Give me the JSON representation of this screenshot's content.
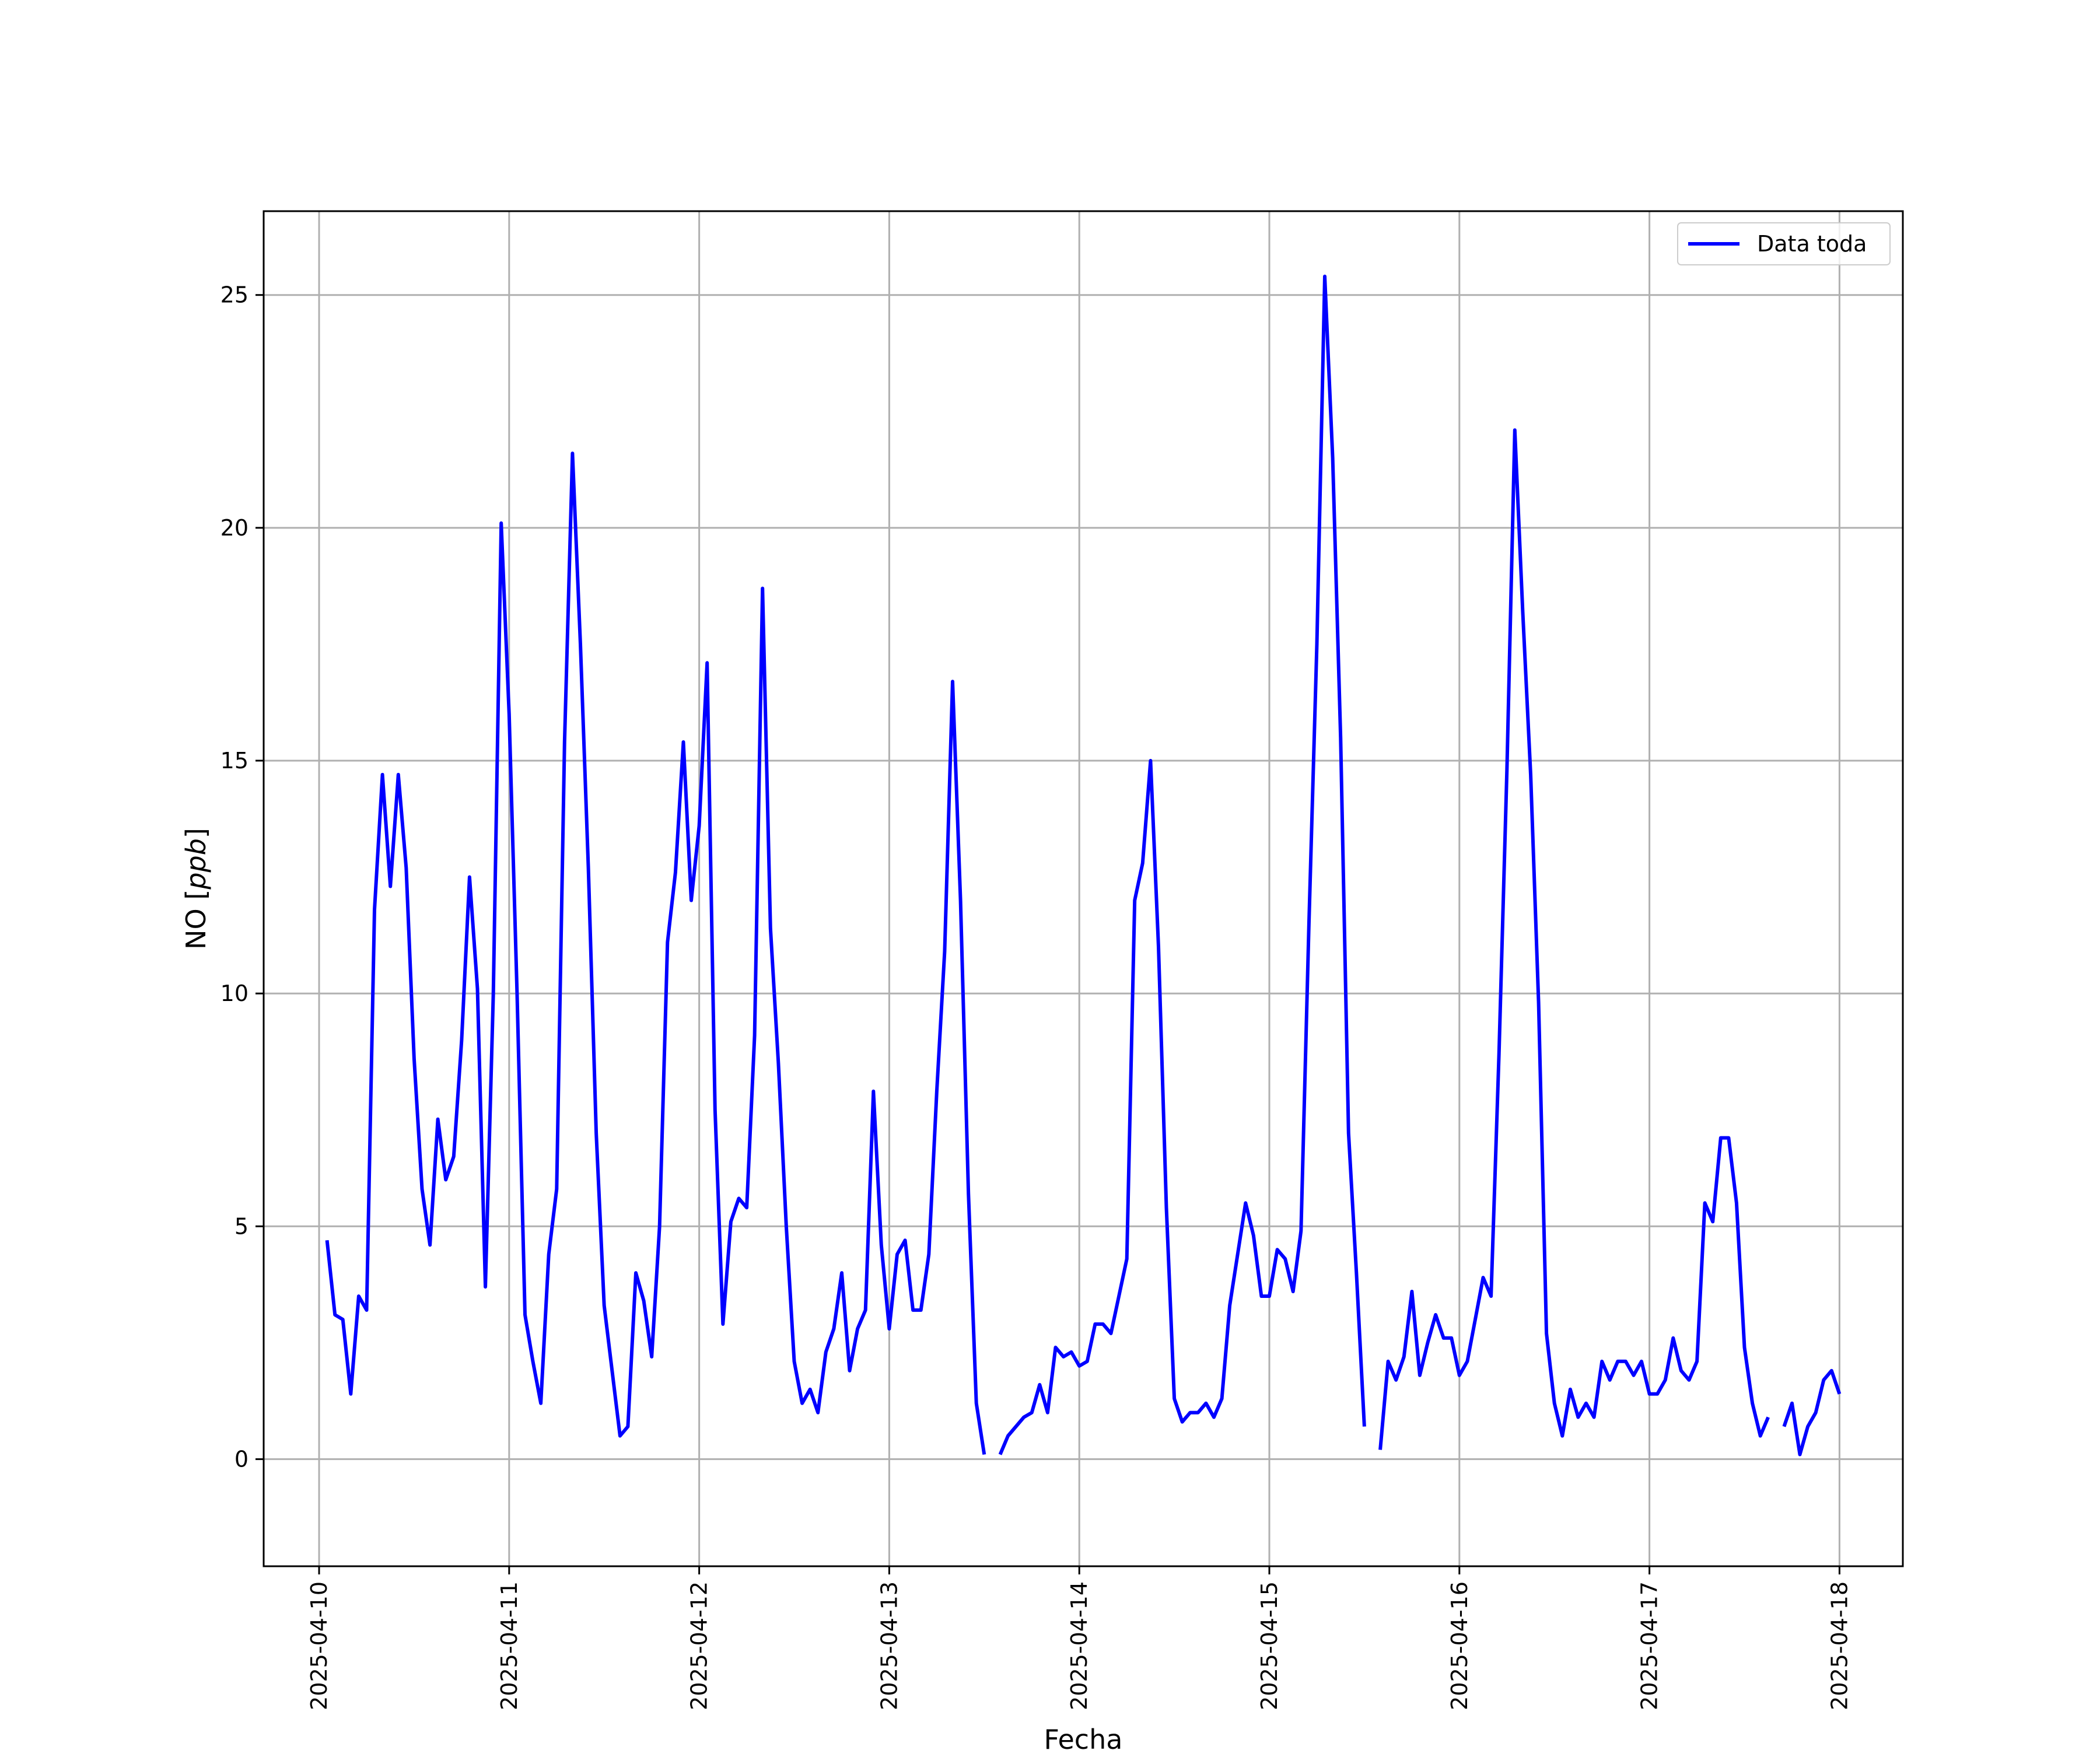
{
  "chart_data": {
    "type": "line",
    "xlabel": "Fecha",
    "ylabel_main": "NO ",
    "ylabel_italic": "ppb",
    "ylabel_open": "[",
    "ylabel_close": "]",
    "xlim": [
      "2025-04-09T17:00",
      "2025-04-18T08:00"
    ],
    "ylim": [
      -2.3,
      26.8
    ],
    "grid": true,
    "legend_position": "top-right",
    "x_ticks": [
      "2025-04-10",
      "2025-04-11",
      "2025-04-12",
      "2025-04-13",
      "2025-04-14",
      "2025-04-15",
      "2025-04-16",
      "2025-04-17",
      "2025-04-18"
    ],
    "y_ticks": [
      0,
      5,
      10,
      15,
      20,
      25
    ],
    "series": [
      {
        "name": "Data toda",
        "color": "#0000ff",
        "points": [
          [
            "2025-04-10T01:00",
            4.7
          ],
          [
            "2025-04-10T02:00",
            3.1
          ],
          [
            "2025-04-10T03:00",
            3.0
          ],
          [
            "2025-04-10T04:00",
            1.4
          ],
          [
            "2025-04-10T05:00",
            3.5
          ],
          [
            "2025-04-10T06:00",
            3.2
          ],
          [
            "2025-04-10T07:00",
            11.8
          ],
          [
            "2025-04-10T08:00",
            14.7
          ],
          [
            "2025-04-10T09:00",
            12.3
          ],
          [
            "2025-04-10T10:00",
            14.7
          ],
          [
            "2025-04-10T11:00",
            12.7
          ],
          [
            "2025-04-10T12:00",
            8.6
          ],
          [
            "2025-04-10T13:00",
            5.8
          ],
          [
            "2025-04-10T14:00",
            4.6
          ],
          [
            "2025-04-10T15:00",
            7.3
          ],
          [
            "2025-04-10T16:00",
            6.0
          ],
          [
            "2025-04-10T17:00",
            6.5
          ],
          [
            "2025-04-10T18:00",
            9.0
          ],
          [
            "2025-04-10T19:00",
            12.5
          ],
          [
            "2025-04-10T20:00",
            10.1
          ],
          [
            "2025-04-10T21:00",
            3.7
          ],
          [
            "2025-04-10T22:00",
            10.0
          ],
          [
            "2025-04-10T23:00",
            20.1
          ],
          [
            "2025-04-11T00:00",
            16.0
          ],
          [
            "2025-04-11T01:00",
            10.0
          ],
          [
            "2025-04-11T02:00",
            3.1
          ],
          [
            "2025-04-11T03:00",
            2.1
          ],
          [
            "2025-04-11T04:00",
            1.2
          ],
          [
            "2025-04-11T05:00",
            4.4
          ],
          [
            "2025-04-11T06:00",
            5.8
          ],
          [
            "2025-04-11T07:00",
            15.4
          ],
          [
            "2025-04-11T08:00",
            21.6
          ],
          [
            "2025-04-11T09:00",
            17.5
          ],
          [
            "2025-04-11T10:00",
            12.7
          ],
          [
            "2025-04-11T11:00",
            7.0
          ],
          [
            "2025-04-11T12:00",
            3.3
          ],
          [
            "2025-04-11T13:00",
            1.9
          ],
          [
            "2025-04-11T14:00",
            0.5
          ],
          [
            "2025-04-11T15:00",
            0.7
          ],
          [
            "2025-04-11T16:00",
            4.0
          ],
          [
            "2025-04-11T17:00",
            3.4
          ],
          [
            "2025-04-11T18:00",
            2.2
          ],
          [
            "2025-04-11T19:00",
            5.0
          ],
          [
            "2025-04-11T20:00",
            11.1
          ],
          [
            "2025-04-11T21:00",
            12.6
          ],
          [
            "2025-04-11T22:00",
            15.4
          ],
          [
            "2025-04-11T23:00",
            12.0
          ],
          [
            "2025-04-12T00:00",
            13.6
          ],
          [
            "2025-04-12T01:00",
            17.1
          ],
          [
            "2025-04-12T02:00",
            7.5
          ],
          [
            "2025-04-12T03:00",
            2.9
          ],
          [
            "2025-04-12T04:00",
            5.1
          ],
          [
            "2025-04-12T05:00",
            5.6
          ],
          [
            "2025-04-12T06:00",
            5.4
          ],
          [
            "2025-04-12T07:00",
            9.1
          ],
          [
            "2025-04-12T08:00",
            18.7
          ],
          [
            "2025-04-12T09:00",
            11.4
          ],
          [
            "2025-04-12T10:00",
            8.5
          ],
          [
            "2025-04-12T11:00",
            5.0
          ],
          [
            "2025-04-12T12:00",
            2.1
          ],
          [
            "2025-04-12T13:00",
            1.2
          ],
          [
            "2025-04-12T14:00",
            1.5
          ],
          [
            "2025-04-12T15:00",
            1.0
          ],
          [
            "2025-04-12T16:00",
            2.3
          ],
          [
            "2025-04-12T17:00",
            2.8
          ],
          [
            "2025-04-12T18:00",
            4.0
          ],
          [
            "2025-04-12T19:00",
            1.9
          ],
          [
            "2025-04-12T20:00",
            2.8
          ],
          [
            "2025-04-12T21:00",
            3.2
          ],
          [
            "2025-04-12T22:00",
            7.9
          ],
          [
            "2025-04-12T23:00",
            4.6
          ],
          [
            "2025-04-13T00:00",
            2.8
          ],
          [
            "2025-04-13T01:00",
            4.4
          ],
          [
            "2025-04-13T02:00",
            4.7
          ],
          [
            "2025-04-13T03:00",
            3.2
          ],
          [
            "2025-04-13T04:00",
            3.2
          ],
          [
            "2025-04-13T05:00",
            4.4
          ],
          [
            "2025-04-13T06:00",
            7.9
          ],
          [
            "2025-04-13T07:00",
            10.9
          ],
          [
            "2025-04-13T08:00",
            16.7
          ],
          [
            "2025-04-13T09:00",
            12.0
          ],
          [
            "2025-04-13T10:00",
            5.7
          ],
          [
            "2025-04-13T11:00",
            1.2
          ],
          [
            "2025-04-13T12:00",
            0.1
          ],
          null,
          [
            "2025-04-13T14:00",
            0.1
          ],
          [
            "2025-04-13T15:00",
            0.5
          ],
          [
            "2025-04-13T16:00",
            0.7
          ],
          [
            "2025-04-13T17:00",
            0.9
          ],
          [
            "2025-04-13T18:00",
            1.0
          ],
          [
            "2025-04-13T19:00",
            1.6
          ],
          [
            "2025-04-13T20:00",
            1.0
          ],
          [
            "2025-04-13T21:00",
            2.4
          ],
          [
            "2025-04-13T22:00",
            2.2
          ],
          [
            "2025-04-13T23:00",
            2.3
          ],
          [
            "2025-04-14T00:00",
            2.0
          ],
          [
            "2025-04-14T01:00",
            2.1
          ],
          [
            "2025-04-14T02:00",
            2.9
          ],
          [
            "2025-04-14T03:00",
            2.9
          ],
          [
            "2025-04-14T04:00",
            2.7
          ],
          [
            "2025-04-14T05:00",
            3.5
          ],
          [
            "2025-04-14T06:00",
            4.3
          ],
          [
            "2025-04-14T07:00",
            12.0
          ],
          [
            "2025-04-14T08:00",
            12.8
          ],
          [
            "2025-04-14T09:00",
            15.0
          ],
          [
            "2025-04-14T10:00",
            11.0
          ],
          [
            "2025-04-14T11:00",
            5.4
          ],
          [
            "2025-04-14T12:00",
            1.3
          ],
          [
            "2025-04-14T13:00",
            0.8
          ],
          [
            "2025-04-14T14:00",
            1.0
          ],
          [
            "2025-04-14T15:00",
            1.0
          ],
          [
            "2025-04-14T16:00",
            1.2
          ],
          [
            "2025-04-14T17:00",
            0.9
          ],
          [
            "2025-04-14T18:00",
            1.3
          ],
          [
            "2025-04-14T19:00",
            3.3
          ],
          [
            "2025-04-14T20:00",
            4.4
          ],
          [
            "2025-04-14T21:00",
            5.5
          ],
          [
            "2025-04-14T22:00",
            4.8
          ],
          [
            "2025-04-14T23:00",
            3.5
          ],
          [
            "2025-04-15T00:00",
            3.5
          ],
          [
            "2025-04-15T01:00",
            4.5
          ],
          [
            "2025-04-15T02:00",
            4.3
          ],
          [
            "2025-04-15T03:00",
            3.6
          ],
          [
            "2025-04-15T04:00",
            4.9
          ],
          [
            "2025-04-15T05:00",
            11.5
          ],
          [
            "2025-04-15T06:00",
            17.5
          ],
          [
            "2025-04-15T07:00",
            25.4
          ],
          [
            "2025-04-15T08:00",
            21.5
          ],
          [
            "2025-04-15T09:00",
            15.5
          ],
          [
            "2025-04-15T10:00",
            7.0
          ],
          [
            "2025-04-15T11:00",
            4.0
          ],
          [
            "2025-04-15T12:00",
            0.7
          ],
          null,
          [
            "2025-04-15T14:00",
            0.2
          ],
          [
            "2025-04-15T15:00",
            2.1
          ],
          [
            "2025-04-15T16:00",
            1.7
          ],
          [
            "2025-04-15T17:00",
            2.2
          ],
          [
            "2025-04-15T18:00",
            3.6
          ],
          [
            "2025-04-15T19:00",
            1.8
          ],
          [
            "2025-04-15T20:00",
            2.5
          ],
          [
            "2025-04-15T21:00",
            3.1
          ],
          [
            "2025-04-15T22:00",
            2.6
          ],
          [
            "2025-04-15T23:00",
            2.6
          ],
          [
            "2025-04-16T00:00",
            1.8
          ],
          [
            "2025-04-16T01:00",
            2.1
          ],
          [
            "2025-04-16T02:00",
            3.0
          ],
          [
            "2025-04-16T03:00",
            3.9
          ],
          [
            "2025-04-16T04:00",
            3.5
          ],
          [
            "2025-04-16T05:00",
            8.7
          ],
          [
            "2025-04-16T06:00",
            14.8
          ],
          [
            "2025-04-16T07:00",
            22.1
          ],
          [
            "2025-04-16T08:00",
            18.2
          ],
          [
            "2025-04-16T09:00",
            14.7
          ],
          [
            "2025-04-16T10:00",
            9.8
          ],
          [
            "2025-04-16T11:00",
            2.7
          ],
          [
            "2025-04-16T12:00",
            1.2
          ],
          [
            "2025-04-16T13:00",
            0.5
          ],
          [
            "2025-04-16T14:00",
            1.5
          ],
          [
            "2025-04-16T15:00",
            0.9
          ],
          [
            "2025-04-16T16:00",
            1.2
          ],
          [
            "2025-04-16T17:00",
            0.9
          ],
          [
            "2025-04-16T18:00",
            2.1
          ],
          [
            "2025-04-16T19:00",
            1.7
          ],
          [
            "2025-04-16T20:00",
            2.1
          ],
          [
            "2025-04-16T21:00",
            2.1
          ],
          [
            "2025-04-16T22:00",
            1.8
          ],
          [
            "2025-04-16T23:00",
            2.1
          ],
          [
            "2025-04-17T00:00",
            1.4
          ],
          [
            "2025-04-17T01:00",
            1.4
          ],
          [
            "2025-04-17T02:00",
            1.7
          ],
          [
            "2025-04-17T03:00",
            2.6
          ],
          [
            "2025-04-17T04:00",
            1.9
          ],
          [
            "2025-04-17T05:00",
            1.7
          ],
          [
            "2025-04-17T06:00",
            2.1
          ],
          [
            "2025-04-17T07:00",
            5.5
          ],
          [
            "2025-04-17T08:00",
            5.1
          ],
          [
            "2025-04-17T09:00",
            6.9
          ],
          [
            "2025-04-17T10:00",
            6.9
          ],
          [
            "2025-04-17T11:00",
            5.5
          ],
          [
            "2025-04-17T12:00",
            2.4
          ],
          [
            "2025-04-17T13:00",
            1.2
          ],
          [
            "2025-04-17T14:00",
            0.5
          ],
          [
            "2025-04-17T15:00",
            0.9
          ],
          null,
          [
            "2025-04-17T17:00",
            0.7
          ],
          [
            "2025-04-17T18:00",
            1.2
          ],
          [
            "2025-04-17T19:00",
            0.1
          ],
          [
            "2025-04-17T20:00",
            0.7
          ],
          [
            "2025-04-17T21:00",
            1.0
          ],
          [
            "2025-04-17T22:00",
            1.7
          ],
          [
            "2025-04-17T23:00",
            1.9
          ],
          [
            "2025-04-18T00:00",
            1.4
          ]
        ]
      }
    ]
  }
}
